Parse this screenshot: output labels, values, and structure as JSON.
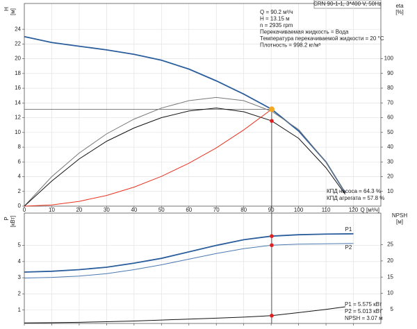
{
  "chart_data": [
    {
      "type": "line",
      "title": "CRN 90-1-1, 3*400 V, 50Hz",
      "y_label": "H",
      "y_unit": "[м]",
      "y2_label": "eta",
      "y2_unit": "[%]",
      "x_label": "Q [м³/ч]",
      "xlim": [
        0,
        130
      ],
      "xticks": [
        0,
        10,
        20,
        30,
        40,
        50,
        60,
        70,
        80,
        90,
        100,
        110,
        120
      ],
      "ylim": [
        0,
        27.5
      ],
      "yticks": [
        0,
        2,
        4,
        6,
        8,
        10,
        12,
        14,
        16,
        18,
        20,
        22,
        24
      ],
      "y2lim": [
        0,
        137.4
      ],
      "y2ticks": [
        10,
        20,
        30,
        40,
        50,
        60,
        70,
        80,
        90,
        100
      ],
      "grid": true,
      "annotations": [
        "Q = 90.2 м³/ч",
        "H = 13.15 м",
        "n = 2935 rpm",
        "Перекачиваемая жидкость = Вода",
        "Температура перекачиваемой жидкости = 20 °C",
        "Плотность = 998.2 кг/м³"
      ],
      "efficiency_labels": [
        "КПД насоса = 64.3 %",
        "КПД агрегата = 57.8 %"
      ],
      "series": [
        {
          "color": "#2a5d9c",
          "x": [
            0,
            10,
            20,
            30,
            40,
            50,
            60,
            70,
            80,
            90.2,
            100,
            110,
            117
          ],
          "values": [
            23,
            22.2,
            21.7,
            21.2,
            20.6,
            19.8,
            18.6,
            17,
            15.2,
            13.15,
            10.2,
            6,
            1.8
          ]
        },
        {
          "color": "#777777",
          "axis": "y2",
          "x": [
            0,
            10,
            20,
            30,
            40,
            50,
            60,
            70,
            80,
            90.2,
            100,
            110,
            117
          ],
          "values": [
            0,
            20,
            36,
            49,
            59,
            66.5,
            71.5,
            73.7,
            71.5,
            64.3,
            52,
            30,
            9
          ]
        },
        {
          "color": "#111111",
          "axis": "y2",
          "x": [
            0,
            10,
            20,
            30,
            40,
            50,
            60,
            70,
            80,
            90.2,
            100,
            110,
            117
          ],
          "values": [
            0,
            17,
            32,
            44,
            53,
            60,
            64.5,
            66.5,
            64,
            57.8,
            46,
            26,
            8
          ]
        },
        {
          "color": "#e8321e",
          "x": [
            0,
            10,
            20,
            30,
            40,
            50,
            60,
            70,
            80,
            90.2
          ],
          "values": [
            0,
            0.16,
            0.65,
            1.45,
            2.58,
            4.04,
            5.82,
            7.91,
            10.34,
            13.15
          ]
        }
      ],
      "points": [
        {
          "x": 90.2,
          "value": 57.8,
          "axis": "y2",
          "color": "#e02020"
        },
        {
          "x": 90.2,
          "value": 13.15,
          "color": "#f5a623"
        }
      ]
    },
    {
      "type": "line",
      "y_label": "P",
      "y_unit": "[кВт]",
      "y2_label": "NPSH",
      "y2_unit": "[м]",
      "ylim": [
        0.17,
        7
      ],
      "yticks": [
        1,
        2,
        3,
        4,
        5
      ],
      "y2lim": [
        0.65,
        34.8
      ],
      "y2ticks": [
        5,
        10,
        15,
        20,
        25
      ],
      "annotations": [
        "P1 = 5.575 кВт",
        "P2 = 5.013 кВт",
        "NPSH = 3.07 м"
      ],
      "series": [
        {
          "name": "P1",
          "color": "#2a5d9c",
          "x": [
            0,
            10,
            20,
            30,
            40,
            50,
            60,
            70,
            80,
            90.2,
            100,
            110,
            120
          ],
          "values": [
            3.35,
            3.4,
            3.5,
            3.65,
            3.9,
            4.2,
            4.6,
            5.0,
            5.35,
            5.575,
            5.66,
            5.7,
            5.72
          ]
        },
        {
          "name": "P2",
          "color": "#4a78b0",
          "x": [
            0,
            10,
            20,
            30,
            40,
            50,
            60,
            70,
            80,
            90.2,
            100,
            110,
            120
          ],
          "values": [
            2.98,
            3.02,
            3.1,
            3.25,
            3.5,
            3.8,
            4.15,
            4.5,
            4.8,
            5.013,
            5.08,
            5.1,
            5.12
          ]
        },
        {
          "color": "#111111",
          "axis": "y2",
          "x": [
            0,
            10,
            20,
            30,
            40,
            50,
            60,
            70,
            80,
            90.2,
            100,
            110,
            117
          ],
          "values": [
            0.8,
            0.9,
            1.0,
            1.2,
            1.4,
            1.7,
            2.0,
            2.3,
            2.6,
            3.07,
            4.0,
            5.0,
            5.8
          ]
        }
      ],
      "points": [
        {
          "x": 90.2,
          "value": 5.575,
          "color": "#e02020"
        },
        {
          "x": 90.2,
          "value": 5.013,
          "color": "#e02020"
        },
        {
          "x": 90.2,
          "value": 3.07,
          "axis": "y2",
          "color": "#e02020"
        }
      ]
    }
  ]
}
